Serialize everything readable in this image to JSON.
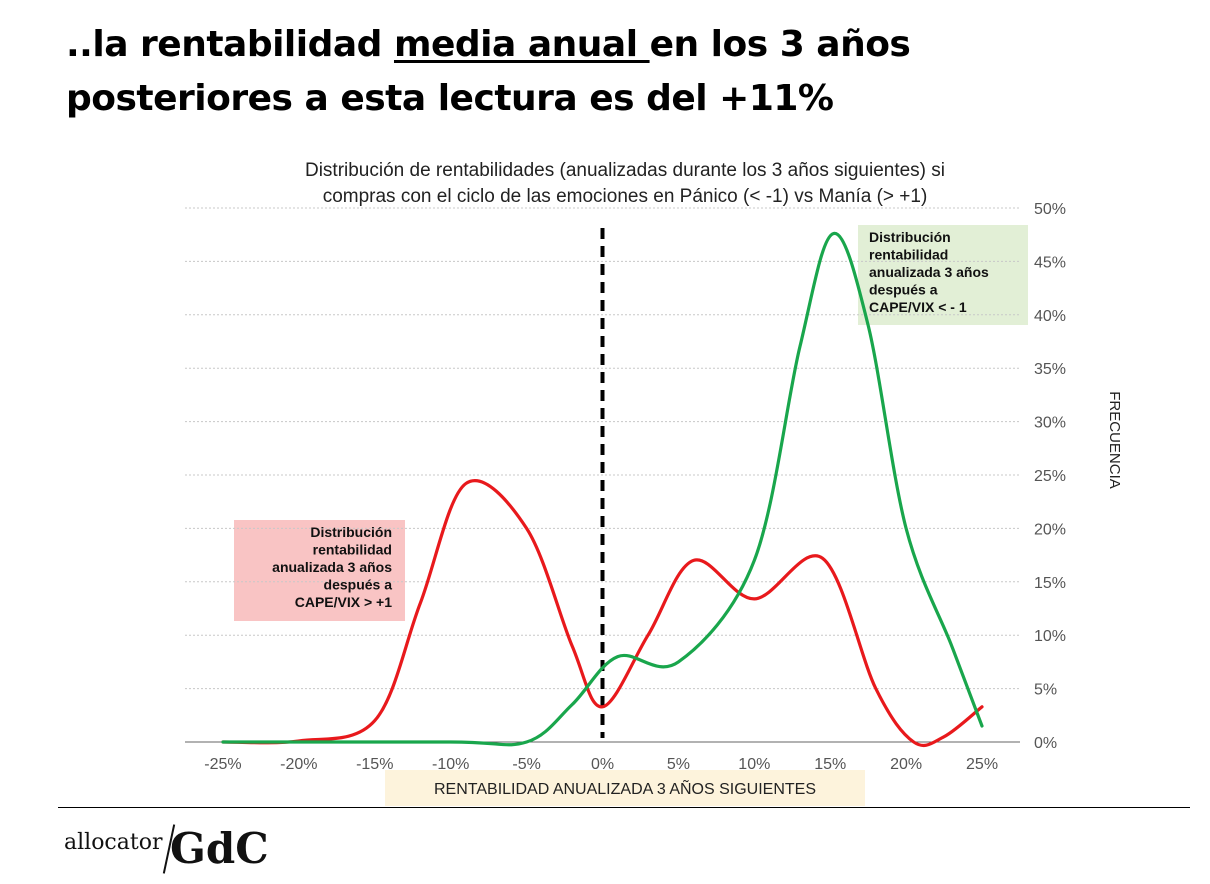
{
  "headline": {
    "part1": "..la rentabilidad ",
    "underlined": "media anual ",
    "part2": "en los 3 años",
    "line2": "posteriores a esta lectura es del +11%"
  },
  "chart_data": {
    "type": "line",
    "title_line1": "Distribución de rentabilidades (anualizadas durante los 3 años siguientes) si",
    "title_line2": "compras con el ciclo de las emociones en Pánico (< -1) vs Manía (> +1)",
    "xlabel": "RENTABILIDAD ANUALIZADA 3 AÑOS SIGUIENTES",
    "ylabel": "FRECUENCIA",
    "xlim": [
      -0.275,
      0.275
    ],
    "ylim": [
      0,
      0.5
    ],
    "x_ticks": [
      -0.25,
      -0.2,
      -0.15,
      -0.1,
      -0.05,
      0,
      0.05,
      0.1,
      0.15,
      0.2,
      0.25
    ],
    "x_tick_labels": [
      "-25%",
      "-20%",
      "-15%",
      "-10%",
      "-5%",
      "0%",
      "5%",
      "10%",
      "15%",
      "20%",
      "25%"
    ],
    "y_ticks": [
      0,
      0.05,
      0.1,
      0.15,
      0.2,
      0.25,
      0.3,
      0.35,
      0.4,
      0.45,
      0.5
    ],
    "y_tick_labels": [
      "0%",
      "5%",
      "10%",
      "15%",
      "20%",
      "25%",
      "30%",
      "35%",
      "40%",
      "45%",
      "50%"
    ],
    "grid": true,
    "reference_line_x": 0,
    "series": [
      {
        "name": "mania",
        "color": "#e8191c",
        "points": [
          [
            -0.25,
            0
          ],
          [
            -0.2,
            0.001
          ],
          [
            -0.15,
            0.02
          ],
          [
            -0.12,
            0.13
          ],
          [
            -0.09,
            0.242
          ],
          [
            -0.05,
            0.2
          ],
          [
            -0.02,
            0.09
          ],
          [
            0,
            0.033
          ],
          [
            0.03,
            0.1
          ],
          [
            0.06,
            0.17
          ],
          [
            0.1,
            0.134
          ],
          [
            0.145,
            0.172
          ],
          [
            0.18,
            0.05
          ],
          [
            0.205,
            0
          ],
          [
            0.225,
            0.005
          ],
          [
            0.25,
            0.033
          ]
        ]
      },
      {
        "name": "panico",
        "color": "#19a64c",
        "points": [
          [
            -0.25,
            0
          ],
          [
            -0.1,
            0
          ],
          [
            -0.05,
            0
          ],
          [
            -0.02,
            0.035
          ],
          [
            0.01,
            0.08
          ],
          [
            0.05,
            0.075
          ],
          [
            0.1,
            0.17
          ],
          [
            0.13,
            0.37
          ],
          [
            0.152,
            0.476
          ],
          [
            0.175,
            0.39
          ],
          [
            0.2,
            0.2
          ],
          [
            0.23,
            0.09
          ],
          [
            0.25,
            0.015
          ]
        ]
      }
    ],
    "annotations": [
      {
        "name": "mania-annotation",
        "lines": [
          "Distribución",
          "rentabilidad",
          "anualizada 3 años",
          "después a",
          "CAPE/VIX > +1"
        ],
        "bg_color": "#f9c4c4"
      },
      {
        "name": "panico-annotation",
        "lines": [
          "Distribución",
          "rentabilidad",
          "anualizada 3 años",
          "después a",
          "CAPE/VIX < - 1"
        ],
        "bg_color": "#e2efd6"
      }
    ],
    "xlabel_bg": "#fdf3dc"
  },
  "footer": {
    "logo_left": "allocator",
    "logo_right": "GdC"
  }
}
